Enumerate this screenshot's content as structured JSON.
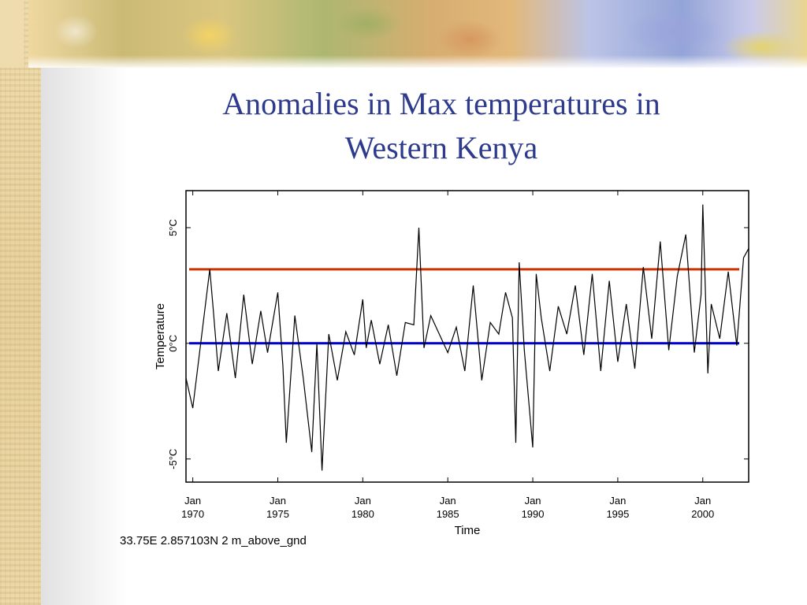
{
  "slide": {
    "title_line1": "Anomalies in Max temperatures in",
    "title_line2": "Western Kenya",
    "caption": "33.75E 2.857103N 2 m_above_gnd"
  },
  "chart_data": {
    "type": "line",
    "xlabel": "Time",
    "ylabel": "Temperature",
    "x_ticks": [
      {
        "month": "Jan",
        "year": "1970"
      },
      {
        "month": "Jan",
        "year": "1975"
      },
      {
        "month": "Jan",
        "year": "1980"
      },
      {
        "month": "Jan",
        "year": "1985"
      },
      {
        "month": "Jan",
        "year": "1990"
      },
      {
        "month": "Jan",
        "year": "1995"
      },
      {
        "month": "Jan",
        "year": "2000"
      }
    ],
    "y_ticks": [
      "5°C",
      "0°C",
      "-5°C"
    ],
    "ylim": [
      -6.0,
      6.6
    ],
    "xlim": [
      1969.6,
      2002.7
    ],
    "series": [
      {
        "color": "#000000",
        "x": [
          1969.6,
          1970.0,
          1970.5,
          1971.0,
          1971.2,
          1971.5,
          1972.0,
          1972.5,
          1973.0,
          1973.5,
          1974.0,
          1974.4,
          1975.0,
          1975.3,
          1975.5,
          1976.0,
          1976.5,
          1977.0,
          1977.3,
          1977.6,
          1978.0,
          1978.5,
          1979.0,
          1979.5,
          1980.0,
          1980.2,
          1980.5,
          1981.0,
          1981.5,
          1982.0,
          1982.5,
          1983.0,
          1983.3,
          1983.6,
          1984.0,
          1984.5,
          1985.0,
          1985.5,
          1986.0,
          1986.5,
          1987.0,
          1987.5,
          1988.0,
          1988.4,
          1988.8,
          1989.0,
          1989.2,
          1989.5,
          1990.0,
          1990.2,
          1990.5,
          1991.0,
          1991.5,
          1992.0,
          1992.5,
          1993.0,
          1993.5,
          1994.0,
          1994.5,
          1995.0,
          1995.5,
          1996.0,
          1996.5,
          1997.0,
          1997.5,
          1998.0,
          1998.5,
          1999.0,
          1999.5,
          1999.9,
          2000.0,
          2000.3,
          2000.5,
          2001.0,
          2001.5,
          2002.0,
          2002.4,
          2002.7
        ],
        "values": [
          -1.5,
          -2.8,
          0.2,
          3.2,
          1.5,
          -1.2,
          1.3,
          -1.5,
          2.1,
          -0.9,
          1.4,
          -0.4,
          2.2,
          -1.0,
          -4.3,
          1.2,
          -1.5,
          -4.7,
          0.0,
          -5.5,
          0.4,
          -1.6,
          0.5,
          -0.5,
          1.9,
          -0.2,
          1.0,
          -0.9,
          0.8,
          -1.4,
          0.9,
          0.8,
          5.0,
          -0.2,
          1.2,
          0.4,
          -0.4,
          0.7,
          -1.2,
          2.5,
          -1.6,
          0.9,
          0.4,
          2.2,
          1.1,
          -4.3,
          3.5,
          -0.3,
          -4.5,
          3.0,
          1.1,
          -1.2,
          1.6,
          0.4,
          2.5,
          -0.5,
          3.0,
          -1.2,
          2.7,
          -0.8,
          1.7,
          -1.1,
          3.3,
          0.2,
          4.4,
          -0.3,
          2.9,
          4.7,
          -0.4,
          2.1,
          6.0,
          -1.3,
          1.7,
          0.2,
          3.1,
          -0.1,
          3.7,
          4.1
        ]
      }
    ],
    "reference_lines": [
      {
        "value": 3.2,
        "color": "#cc3300"
      },
      {
        "value": 0.0,
        "color": "#0000cc"
      }
    ]
  }
}
